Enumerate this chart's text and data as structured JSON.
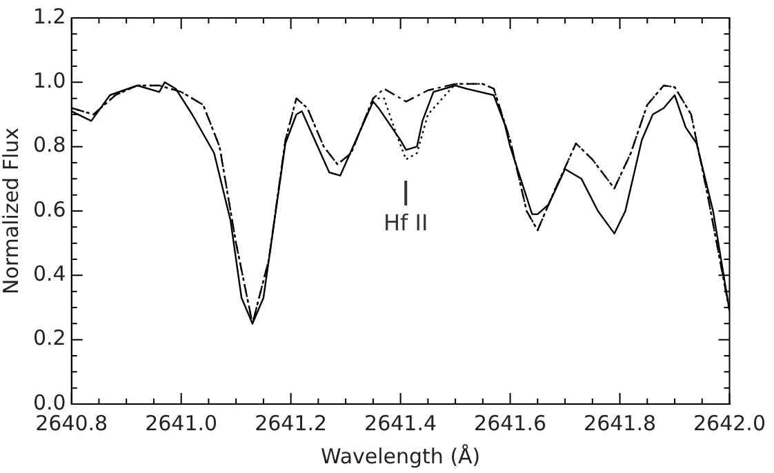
{
  "chart_data": {
    "type": "line",
    "xlabel": "Wavelength (Å)",
    "ylabel": "Normalized Flux",
    "xlim": [
      2640.8,
      2642.0
    ],
    "ylim": [
      0,
      1.2
    ],
    "xticks": [
      {
        "value": 2640.8,
        "label": "2640.8"
      },
      {
        "value": 2640.85,
        "label": null
      },
      {
        "value": 2640.9,
        "label": null
      },
      {
        "value": 2640.95,
        "label": null
      },
      {
        "value": 2641.0,
        "label": "2641.0"
      },
      {
        "value": 2641.05,
        "label": null
      },
      {
        "value": 2641.1,
        "label": null
      },
      {
        "value": 2641.15,
        "label": null
      },
      {
        "value": 2641.2,
        "label": "2641.2"
      },
      {
        "value": 2641.25,
        "label": null
      },
      {
        "value": 2641.3,
        "label": null
      },
      {
        "value": 2641.35,
        "label": null
      },
      {
        "value": 2641.4,
        "label": "2641.4"
      },
      {
        "value": 2641.45,
        "label": null
      },
      {
        "value": 2641.5,
        "label": null
      },
      {
        "value": 2641.55,
        "label": null
      },
      {
        "value": 2641.6,
        "label": "2641.6"
      },
      {
        "value": 2641.65,
        "label": null
      },
      {
        "value": 2641.7,
        "label": null
      },
      {
        "value": 2641.75,
        "label": null
      },
      {
        "value": 2641.8,
        "label": "2641.8"
      },
      {
        "value": 2641.85,
        "label": null
      },
      {
        "value": 2641.9,
        "label": null
      },
      {
        "value": 2641.95,
        "label": null
      },
      {
        "value": 2642.0,
        "label": "2642.0"
      }
    ],
    "yticks": [
      {
        "value": 0,
        "label": "0.0"
      },
      {
        "value": 0.05,
        "label": null
      },
      {
        "value": 0.1,
        "label": null
      },
      {
        "value": 0.15,
        "label": null
      },
      {
        "value": 0.2,
        "label": "0.2"
      },
      {
        "value": 0.25,
        "label": null
      },
      {
        "value": 0.3,
        "label": null
      },
      {
        "value": 0.35,
        "label": null
      },
      {
        "value": 0.4,
        "label": "0.4"
      },
      {
        "value": 0.45,
        "label": null
      },
      {
        "value": 0.5,
        "label": null
      },
      {
        "value": 0.55,
        "label": null
      },
      {
        "value": 0.6,
        "label": "0.6"
      },
      {
        "value": 0.65,
        "label": null
      },
      {
        "value": 0.7,
        "label": null
      },
      {
        "value": 0.75,
        "label": null
      },
      {
        "value": 0.8,
        "label": "0.8"
      },
      {
        "value": 0.85,
        "label": null
      },
      {
        "value": 0.9,
        "label": null
      },
      {
        "value": 0.95,
        "label": null
      },
      {
        "value": 1.0,
        "label": "1.0"
      },
      {
        "value": 1.05,
        "label": null
      },
      {
        "value": 1.1,
        "label": null
      },
      {
        "value": 1.15,
        "label": null
      },
      {
        "value": 1.2,
        "label": "1.2"
      }
    ],
    "grid": false,
    "legend": false,
    "marker": "none",
    "annotations": [
      "Hf II"
    ],
    "series": [
      {
        "color": "#000000",
        "line_style": "solid",
        "x": [
          2640.8,
          2640.836,
          2640.87,
          2640.92,
          2640.96,
          2640.97,
          2640.99,
          2641.02,
          2641.06,
          2641.09,
          2641.11,
          2641.13,
          2641.15,
          2641.17,
          2641.19,
          2641.21,
          2641.22,
          2641.27,
          2641.29,
          2641.35,
          2641.36,
          2641.4,
          2641.41,
          2641.43,
          2641.44,
          2641.46,
          2641.5,
          2641.52,
          2641.57,
          2641.59,
          2641.6,
          2641.64,
          2641.65,
          2641.67,
          2641.7,
          2641.73,
          2641.76,
          2641.79,
          2641.81,
          2641.84,
          2641.86,
          2641.88,
          2641.9,
          2641.92,
          2641.94,
          2641.97,
          2642.0
        ],
        "values": [
          0.91,
          0.88,
          0.96,
          0.99,
          0.97,
          1.0,
          0.98,
          0.9,
          0.78,
          0.57,
          0.33,
          0.25,
          0.33,
          0.57,
          0.81,
          0.9,
          0.91,
          0.72,
          0.71,
          0.94,
          0.92,
          0.82,
          0.79,
          0.8,
          0.88,
          0.97,
          0.99,
          0.98,
          0.96,
          0.87,
          0.8,
          0.59,
          0.59,
          0.62,
          0.73,
          0.7,
          0.6,
          0.53,
          0.6,
          0.82,
          0.9,
          0.92,
          0.96,
          0.86,
          0.81,
          0.6,
          0.29
        ]
      },
      {
        "color": "#000000",
        "line_style": "dotted",
        "x": [
          2640.8,
          2640.84,
          2640.88,
          2640.92,
          2640.96,
          2641.0,
          2641.04,
          2641.07,
          2641.1,
          2641.13,
          2641.16,
          2641.19,
          2641.21,
          2641.23,
          2641.26,
          2641.285,
          2641.31,
          2641.35,
          2641.37,
          2641.39,
          2641.41,
          2641.43,
          2641.45,
          2641.5,
          2641.55,
          2641.57,
          2641.6,
          2641.63,
          2641.65,
          2641.68,
          2641.72,
          2641.75,
          2641.79,
          2641.82,
          2641.85,
          2641.88,
          2641.9,
          2641.93,
          2641.96,
          2642.0
        ],
        "values": [
          0.92,
          0.9,
          0.96,
          0.99,
          0.99,
          0.97,
          0.93,
          0.8,
          0.5,
          0.25,
          0.45,
          0.82,
          0.95,
          0.92,
          0.8,
          0.745,
          0.78,
          0.95,
          0.95,
          0.85,
          0.76,
          0.78,
          0.9,
          0.995,
          0.995,
          0.98,
          0.82,
          0.6,
          0.54,
          0.66,
          0.81,
          0.76,
          0.67,
          0.78,
          0.93,
          0.99,
          0.985,
          0.9,
          0.65,
          0.29
        ]
      },
      {
        "color": "#000000",
        "line_style": "dashed",
        "x": [
          2640.8,
          2640.84,
          2640.88,
          2640.92,
          2640.96,
          2641.0,
          2641.04,
          2641.07,
          2641.1,
          2641.13,
          2641.16,
          2641.19,
          2641.21,
          2641.23,
          2641.26,
          2641.285,
          2641.31,
          2641.35,
          2641.37,
          2641.41,
          2641.45,
          2641.5,
          2641.55,
          2641.57,
          2641.6,
          2641.63,
          2641.65,
          2641.68,
          2641.72,
          2641.75,
          2641.79,
          2641.82,
          2641.85,
          2641.88,
          2641.9,
          2641.93,
          2641.96,
          2642.0
        ],
        "values": [
          0.92,
          0.9,
          0.96,
          0.99,
          0.99,
          0.97,
          0.93,
          0.8,
          0.5,
          0.25,
          0.45,
          0.82,
          0.95,
          0.92,
          0.8,
          0.745,
          0.78,
          0.95,
          0.98,
          0.94,
          0.975,
          0.995,
          0.995,
          0.98,
          0.82,
          0.6,
          0.54,
          0.66,
          0.81,
          0.76,
          0.67,
          0.78,
          0.93,
          0.99,
          0.985,
          0.9,
          0.65,
          0.29
        ]
      }
    ]
  }
}
